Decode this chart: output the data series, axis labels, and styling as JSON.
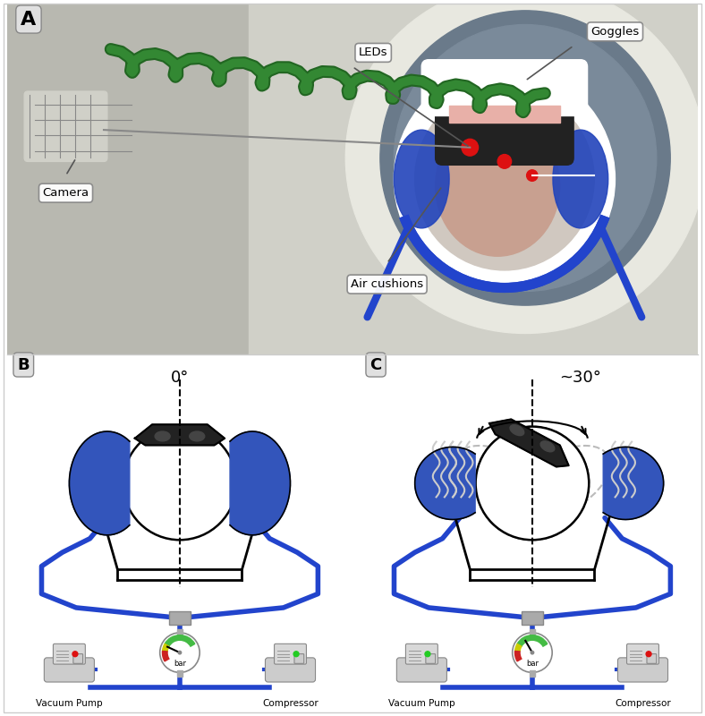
{
  "panel_A_label": "A",
  "panel_B_label": "B",
  "panel_C_label": "C",
  "panel_B_title": "0°",
  "panel_C_title": "~30°",
  "label_camera": "Camera",
  "label_leds": "LEDs",
  "label_goggles": "Goggles",
  "label_air_cushions": "Air cushions",
  "label_vacuum_pump": "Vacuum Pump",
  "label_compressor": "Compressor",
  "label_bar": "bar",
  "blue_color": "#2244CC",
  "dark_blue": "#1133AA",
  "blue_cushion": "#3355BB",
  "black_color": "#111111",
  "gray_bg": "#E8E8E8",
  "gray_medium": "#AAAAAA",
  "gray_dark": "#666666",
  "white_color": "#FFFFFF",
  "gauge_green": "#44BB44",
  "gauge_yellow": "#CCCC00",
  "gauge_red": "#CC2222",
  "red_led": "#DD1111",
  "green_led": "#22CC22",
  "panel_label_bg": "#E0E0E0"
}
